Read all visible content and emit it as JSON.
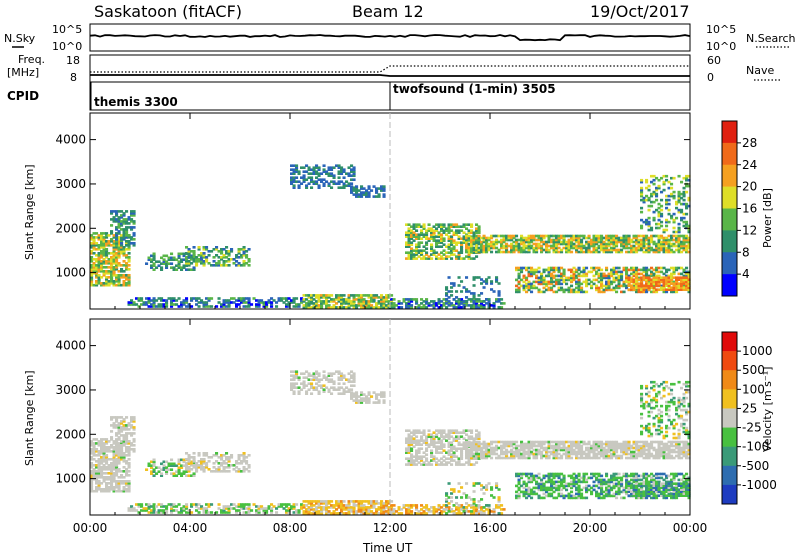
{
  "header": {
    "station": "Saskatoon (fitACF)",
    "beam": "Beam 12",
    "date": "19/Oct/2017"
  },
  "noise_panel": {
    "left_label": "N.Sky",
    "left_ticks": [
      "10^5",
      "10^0"
    ],
    "right_ticks": [
      "10^5",
      "10^0"
    ],
    "right_label": "N.Search"
  },
  "freq_panel": {
    "left_label_1": "Freq.",
    "left_label_2": "[MHz]",
    "left_ticks": [
      "18",
      "8"
    ],
    "right_ticks": [
      "60",
      "0"
    ],
    "right_label": "Nave"
  },
  "cpid": {
    "label": "CPID",
    "segments": [
      {
        "name": "themis 3300",
        "start_hour": 0
      },
      {
        "name": "twofsound (1-min) 3505",
        "start_hour": 12
      }
    ]
  },
  "chart_data": [
    {
      "type": "heatmap",
      "panel": "power",
      "ylabel": "Slant Range [km]",
      "x_ticks": [
        "00:00",
        "04:00",
        "08:00",
        "12:00",
        "16:00",
        "20:00",
        "00:00"
      ],
      "xlim_hours": [
        0,
        24
      ],
      "y_ticks": [
        "1000",
        "2000",
        "3000",
        "4000"
      ],
      "ylim_km": [
        180,
        4600
      ],
      "colorbar": {
        "label": "Power [dB]",
        "ticks": [
          "4",
          "8",
          "12",
          "16",
          "20",
          "24",
          "28"
        ],
        "colors": [
          "#0000ff",
          "#2a64b8",
          "#2f8f6a",
          "#59b548",
          "#dede28",
          "#f5a020",
          "#f06a1a",
          "#e02010"
        ]
      }
    },
    {
      "type": "heatmap",
      "panel": "velocity",
      "ylabel": "Slant Range [km]",
      "xlabel": "Time UT",
      "x_ticks": [
        "00:00",
        "04:00",
        "08:00",
        "12:00",
        "16:00",
        "20:00",
        "00:00"
      ],
      "xlim_hours": [
        0,
        24
      ],
      "y_ticks": [
        "1000",
        "2000",
        "3000",
        "4000"
      ],
      "ylim_km": [
        180,
        4600
      ],
      "colorbar": {
        "label": "Velocity [m s⁻¹]",
        "ticks": [
          "1000",
          "500",
          "100",
          "25",
          "-25",
          "-100",
          "-500",
          "-1000"
        ],
        "colors": [
          "#1e3cc0",
          "#2e6db0",
          "#3a9a78",
          "#48c040",
          "#c8c8c0",
          "#f0c020",
          "#f08a18",
          "#f04a10",
          "#e00a0a"
        ]
      }
    }
  ]
}
